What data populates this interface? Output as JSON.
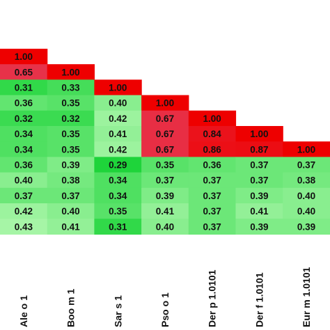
{
  "chart_data": {
    "type": "heatmap",
    "title": "",
    "xlabel": "",
    "ylabel": "",
    "columns": [
      "Ale o 1",
      "Boo m 1",
      "Sar s 1",
      "Pso o 1",
      "Der p 1.0101",
      "Der f 1.0101",
      "Eur m 1.0101"
    ],
    "rows": [
      [
        1.0,
        null,
        null,
        null,
        null,
        null,
        null
      ],
      [
        0.65,
        1.0,
        null,
        null,
        null,
        null,
        null
      ],
      [
        0.31,
        0.33,
        1.0,
        null,
        null,
        null,
        null
      ],
      [
        0.36,
        0.35,
        0.4,
        1.0,
        null,
        null,
        null
      ],
      [
        0.32,
        0.32,
        0.42,
        0.67,
        1.0,
        null,
        null
      ],
      [
        0.34,
        0.35,
        0.41,
        0.67,
        0.84,
        1.0,
        null
      ],
      [
        0.34,
        0.35,
        0.42,
        0.67,
        0.86,
        0.87,
        1.0
      ],
      [
        0.36,
        0.39,
        0.29,
        0.35,
        0.36,
        0.37,
        0.37
      ],
      [
        0.4,
        0.38,
        0.34,
        0.37,
        0.37,
        0.37,
        0.38
      ],
      [
        0.37,
        0.37,
        0.34,
        0.39,
        0.37,
        0.39,
        0.4
      ],
      [
        0.42,
        0.4,
        0.35,
        0.41,
        0.37,
        0.41,
        0.4
      ],
      [
        0.43,
        0.41,
        0.31,
        0.4,
        0.37,
        0.39,
        0.39
      ]
    ],
    "value_format": "0.00",
    "color_scale": {
      "low": "#1ed43a",
      "mid": "#a6f5a6",
      "high_start": "#e63a55",
      "high_end": "#ee0000",
      "split_value": 0.5
    }
  }
}
